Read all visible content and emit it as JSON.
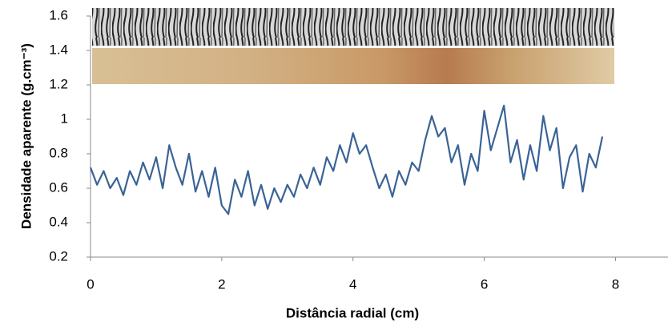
{
  "chart_data": {
    "type": "line",
    "xlabel": "Distância radial (cm)",
    "ylabel": "Densidade aparente (g.cm⁻³)",
    "xlim": [
      0,
      8.8
    ],
    "xticks": [
      0,
      2,
      4,
      6,
      8
    ],
    "ylim": [
      0.2,
      1.6
    ],
    "yticks": [
      0.2,
      0.4,
      0.6,
      0.8,
      1,
      1.2,
      1.4,
      1.6
    ],
    "grid": false,
    "x": [
      0,
      0.1,
      0.2,
      0.3,
      0.4,
      0.5,
      0.6,
      0.7,
      0.8,
      0.9,
      1,
      1.1,
      1.2,
      1.3,
      1.4,
      1.5,
      1.6,
      1.7,
      1.8,
      1.9,
      2,
      2.1,
      2.2,
      2.3,
      2.4,
      2.5,
      2.6,
      2.7,
      2.8,
      2.9,
      3,
      3.1,
      3.2,
      3.3,
      3.4,
      3.5,
      3.6,
      3.7,
      3.8,
      3.9,
      4,
      4.1,
      4.2,
      4.3,
      4.4,
      4.5,
      4.6,
      4.7,
      4.8,
      4.9,
      5,
      5.1,
      5.2,
      5.3,
      5.4,
      5.5,
      5.6,
      5.7,
      5.8,
      5.9,
      6,
      6.1,
      6.2,
      6.3,
      6.4,
      6.5,
      6.6,
      6.7,
      6.8,
      6.9,
      7,
      7.1,
      7.2,
      7.3,
      7.4,
      7.5,
      7.6,
      7.7,
      7.8
    ],
    "series": [
      {
        "color": "#3a6396",
        "values": [
          0.72,
          0.62,
          0.7,
          0.6,
          0.66,
          0.56,
          0.7,
          0.62,
          0.75,
          0.65,
          0.78,
          0.6,
          0.85,
          0.72,
          0.62,
          0.8,
          0.58,
          0.7,
          0.55,
          0.72,
          0.5,
          0.45,
          0.65,
          0.55,
          0.7,
          0.5,
          0.62,
          0.48,
          0.6,
          0.52,
          0.62,
          0.55,
          0.68,
          0.6,
          0.72,
          0.62,
          0.78,
          0.7,
          0.85,
          0.75,
          0.92,
          0.8,
          0.85,
          0.72,
          0.6,
          0.68,
          0.55,
          0.7,
          0.62,
          0.75,
          0.7,
          0.88,
          1.02,
          0.9,
          0.95,
          0.75,
          0.85,
          0.62,
          0.8,
          0.7,
          1.05,
          0.82,
          0.95,
          1.08,
          0.75,
          0.88,
          0.65,
          0.85,
          0.7,
          1.02,
          0.82,
          0.95,
          0.6,
          0.78,
          0.85,
          0.58,
          0.8,
          0.72,
          0.9
        ]
      }
    ]
  }
}
